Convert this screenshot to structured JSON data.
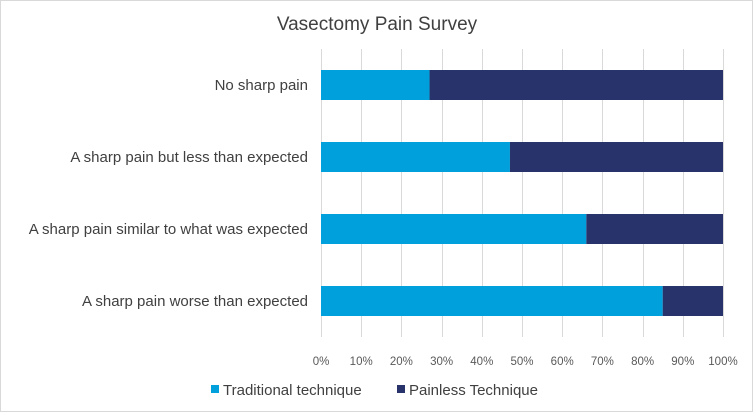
{
  "chart_data": {
    "type": "bar",
    "orientation": "horizontal",
    "stacked": "percent",
    "title": "Vasectomy Pain Survey",
    "categories": [
      "No sharp pain",
      "A sharp pain but less than expected",
      "A sharp pain similar to what was expected",
      "A sharp pain worse than expected"
    ],
    "series": [
      {
        "name": "Traditional technique",
        "color": "#00a0dc",
        "values": [
          27,
          47,
          66,
          85
        ]
      },
      {
        "name": "Painless Technique",
        "color": "#28336c",
        "values": [
          73,
          53,
          34,
          15
        ]
      }
    ],
    "xlim": [
      0,
      100
    ],
    "xticks": [
      "0%",
      "10%",
      "20%",
      "30%",
      "40%",
      "50%",
      "60%",
      "70%",
      "80%",
      "90%",
      "100%"
    ],
    "grid": true,
    "legend": "bottom"
  }
}
